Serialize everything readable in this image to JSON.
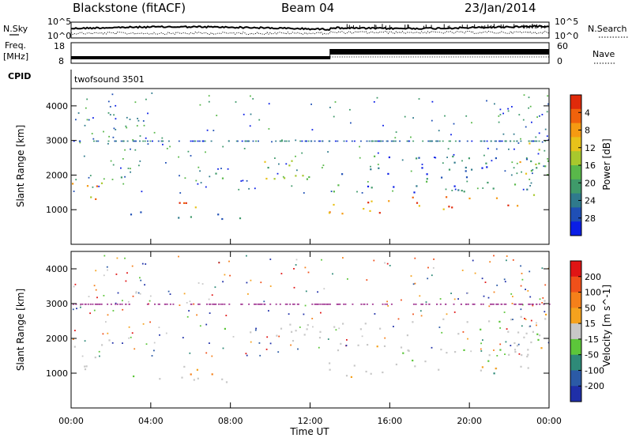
{
  "header": {
    "title": "Blackstone (fitACF)",
    "beam": "Beam 04",
    "date": "23/Jan/2014"
  },
  "noise_panel": {
    "left_label": "N.Sky",
    "right_label": "N.Search",
    "left_ticks": [
      "10^5",
      "10^0"
    ],
    "right_ticks": [
      "10^5",
      "10^0"
    ]
  },
  "freq_panel": {
    "left_label_line1": "Freq.",
    "left_label_line2": "[MHz]",
    "left_ticks": [
      "18",
      "8"
    ],
    "right_label": "Nave",
    "right_ticks": [
      "60",
      "0"
    ],
    "freq_step_time_hours": 13.0
  },
  "cpid_panel": {
    "label": "CPID",
    "program": "twofsound 3501"
  },
  "x_axis": {
    "label": "Time UT",
    "ticks": [
      "00:00",
      "04:00",
      "08:00",
      "12:00",
      "16:00",
      "20:00",
      "00:00"
    ],
    "range_hours": [
      0,
      24
    ]
  },
  "chart_data": [
    {
      "type": "heatmap",
      "name": "power",
      "ylabel": "Slant Range [km]",
      "yticks": [
        "1000",
        "2000",
        "3000",
        "4000"
      ],
      "ylim": [
        0,
        4500
      ],
      "xlabel": "Time UT",
      "xlim_hours": [
        0,
        24
      ],
      "colorbar": {
        "label": "Power [dB]",
        "ticks": [
          "4",
          "8",
          "12",
          "16",
          "20",
          "24",
          "28"
        ],
        "range": [
          0,
          32
        ],
        "colors": [
          "#0a1ee6",
          "#1f4fb5",
          "#2f7a8c",
          "#3f9a6a",
          "#59b84a",
          "#a8c82d",
          "#e8c21a",
          "#f59a12",
          "#f0620c",
          "#e02a0a"
        ]
      },
      "scatter_bands": [
        {
          "t0": 0,
          "t1": 1.5,
          "r0": 1000,
          "r1": 1800,
          "level": 0.7
        },
        {
          "t0": 1.5,
          "t1": 2.8,
          "r0": 1600,
          "r1": 2000,
          "level": 0.6
        },
        {
          "t0": 2.7,
          "t1": 9.5,
          "r0": 750,
          "r1": 1000,
          "level": 0.3
        },
        {
          "t0": 5.0,
          "t1": 7.5,
          "r0": 950,
          "r1": 1400,
          "level": 0.8
        },
        {
          "t0": 6.8,
          "t1": 12.5,
          "r0": 1900,
          "r1": 2500,
          "level": 0.5
        },
        {
          "t0": 12.8,
          "t1": 23.5,
          "r0": 900,
          "r1": 1400,
          "level": 0.85
        },
        {
          "t0": 13.0,
          "t1": 23.5,
          "r0": 1500,
          "r1": 2600,
          "level": 0.25
        },
        {
          "t0": 22.5,
          "t1": 24.0,
          "r0": 1400,
          "r1": 3200,
          "level": 0.55
        }
      ]
    },
    {
      "type": "heatmap",
      "name": "velocity",
      "ylabel": "Slant Range [km]",
      "yticks": [
        "1000",
        "2000",
        "3000",
        "4000"
      ],
      "ylim": [
        0,
        4500
      ],
      "xlabel": "Time UT",
      "xlim_hours": [
        0,
        24
      ],
      "colorbar": {
        "label": "Velocity [m s^-1]",
        "ticks": [
          "200",
          "100",
          "50",
          "15",
          "-15",
          "-50",
          "-100",
          "-200"
        ],
        "range": [
          -250,
          250
        ],
        "colors": [
          "#1f2fa8",
          "#2b5aa6",
          "#2e8a78",
          "#5cc63a",
          "#c8c8c8",
          "#f5a21e",
          "#f5801a",
          "#f0501a",
          "#e01515"
        ]
      },
      "scatter_bands": [
        {
          "t0": 0,
          "t1": 1.5,
          "r0": 1000,
          "r1": 1800,
          "level": 0.5
        },
        {
          "t0": 1.5,
          "t1": 2.8,
          "r0": 1600,
          "r1": 2000,
          "level": 0.5
        },
        {
          "t0": 2.7,
          "t1": 9.5,
          "r0": 750,
          "r1": 1000,
          "level": 0.6
        },
        {
          "t0": 5.0,
          "t1": 7.5,
          "r0": 950,
          "r1": 1400,
          "level": 0.75
        },
        {
          "t0": 6.8,
          "t1": 12.5,
          "r0": 1900,
          "r1": 2500,
          "level": 0.5
        },
        {
          "t0": 12.8,
          "t1": 23.5,
          "r0": 900,
          "r1": 1400,
          "level": 0.45
        },
        {
          "t0": 13.0,
          "t1": 23.5,
          "r0": 1500,
          "r1": 2600,
          "level": 0.5
        },
        {
          "t0": 22.5,
          "t1": 24.0,
          "r0": 1400,
          "r1": 3200,
          "level": 0.5
        }
      ]
    }
  ]
}
